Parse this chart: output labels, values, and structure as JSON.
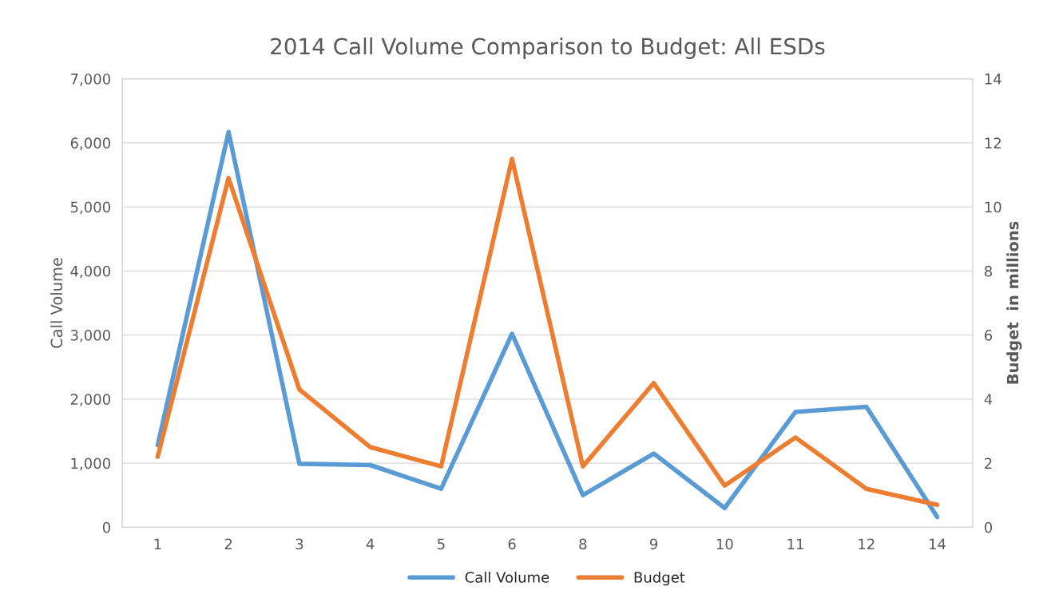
{
  "chart_data": {
    "type": "line",
    "title": "2014 Call Volume Comparison to Budget: All ESDs",
    "ylabel": "Call Volume",
    "y2label": "Budget  in millions",
    "categories": [
      "1",
      "2",
      "3",
      "4",
      "5",
      "6",
      "8",
      "9",
      "10",
      "11",
      "12",
      "14"
    ],
    "series": [
      {
        "name": "Call Volume",
        "color": "#5b9bd5",
        "values": [
          1280,
          6170,
          990,
          970,
          600,
          3020,
          500,
          1150,
          300,
          1800,
          1880,
          160
        ]
      },
      {
        "name": "Budget",
        "color": "#ed7d31",
        "axis": "y2",
        "values": [
          2.2,
          10.9,
          4.3,
          2.5,
          1.9,
          11.5,
          1.9,
          4.5,
          1.3,
          2.8,
          1.2,
          0.7
        ]
      }
    ],
    "ylim": [
      0,
      7000
    ],
    "yticks": [
      0,
      {
        "value": 1000,
        "label": "1,000"
      },
      {
        "value": 2000,
        "label": "2,000"
      },
      {
        "value": 3000,
        "label": "3,000"
      },
      {
        "value": 4000,
        "label": "4,000"
      },
      {
        "value": 5000,
        "label": "5,000"
      },
      {
        "value": 6000,
        "label": "6,000"
      },
      {
        "value": 7000,
        "label": "7,000"
      }
    ],
    "y2lim": [
      0,
      14
    ],
    "y2ticks": [
      0,
      2,
      4,
      6,
      8,
      10,
      12,
      14
    ],
    "grid": "y",
    "legend": "bottom",
    "marker": "none",
    "line_style": "solid"
  }
}
